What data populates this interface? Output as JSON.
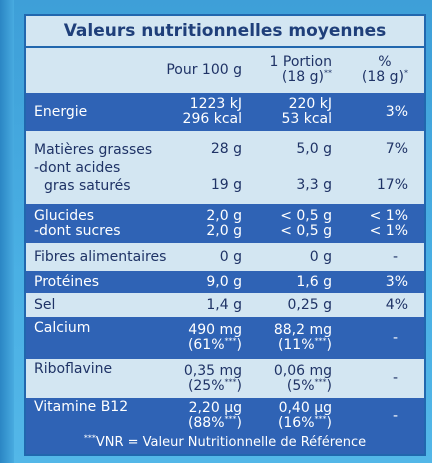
{
  "title": "Valeurs nutritionnelles moyennes",
  "header": {
    "per100": "Pour 100 g",
    "portion_line1": "1 Portion",
    "portion_line2": "(18 g)",
    "portion_mark": "**",
    "pct_line1": "%",
    "pct_line2": "(18 g)",
    "pct_mark": "*"
  },
  "rows": [
    {
      "name1": "Energie",
      "v100_1": "1223 kJ",
      "v100_2": "296 kcal",
      "vp_1": "220 kJ",
      "vp_2": "53 kcal",
      "pct": "3%"
    },
    {
      "name1": "Matières grasses",
      "name2": "-dont acides",
      "name3": "gras saturés",
      "v100_1": "28 g",
      "v100_2": "19 g",
      "vp_1": "5,0 g",
      "vp_2": "3,3 g",
      "pct_1": "7%",
      "pct_2": "17%"
    },
    {
      "name1": "Glucides",
      "name2": "-dont sucres",
      "v100_1": "2,0 g",
      "v100_2": "2,0 g",
      "vp_1": "< 0,5 g",
      "vp_2": "< 0,5 g",
      "pct_1": "< 1%",
      "pct_2": "< 1%"
    },
    {
      "name1": "Fibres alimentaires",
      "v100": "0 g",
      "vp": "0 g",
      "pct": "-"
    },
    {
      "name1": "Protéines",
      "v100": "9,0 g",
      "vp": "1,6 g",
      "pct": "3%"
    },
    {
      "name1": "Sel",
      "v100": "1,4 g",
      "vp": "0,25 g",
      "pct": "4%"
    },
    {
      "name1": "Calcium",
      "v100_1": "490 mg",
      "v100_2": "(61%",
      "vp_1": "88,2 mg",
      "vp_2": "(11%",
      "pct": "-"
    },
    {
      "name1": "Riboflavine",
      "v100_1": "0,35 mg",
      "v100_2": "(25%",
      "vp_1": "0,06 mg",
      "vp_2": "(5%",
      "pct": "-"
    },
    {
      "name1": "Vitamine B12",
      "v100_1": "2,20 µg",
      "v100_2": "(88%",
      "vp_1": "0,40 µg",
      "vp_2": "(16%",
      "pct": "-"
    }
  ],
  "vnr_mark": "***",
  "close_paren": ")",
  "footer": {
    "mark": "***",
    "text": "VNR = Valeur Nutritionnelle de Référence"
  }
}
